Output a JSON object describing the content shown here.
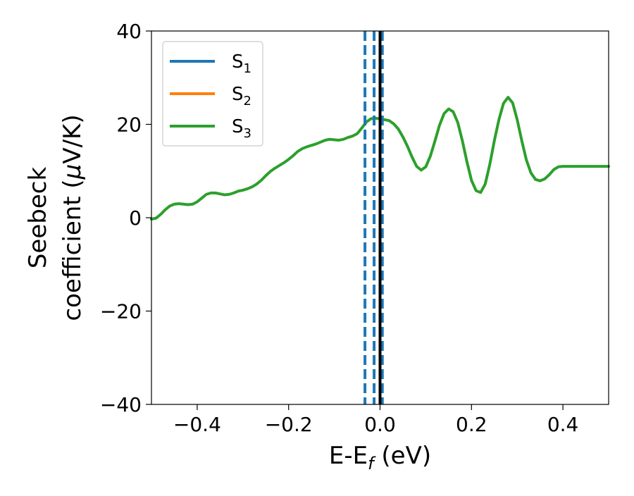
{
  "chart_data": {
    "type": "line",
    "title": "",
    "xlabel": {
      "main": "E-E",
      "sub": "f",
      "suffix": " (eV)"
    },
    "ylabel": {
      "line1": "Seebeck",
      "line2_prefix": "coefficient  (",
      "line2_mu": "μ",
      "line2_suffix": "V/K)"
    },
    "xlim": [
      -0.5,
      0.5
    ],
    "ylim": [
      -40,
      40
    ],
    "x_ticks": [
      -0.4,
      -0.2,
      0.0,
      0.2,
      0.4
    ],
    "x_tick_labels": [
      "−0.4",
      "−0.2",
      "0.0",
      "0.2",
      "0.4"
    ],
    "y_ticks": [
      -40,
      -20,
      0,
      20,
      40
    ],
    "y_tick_labels": [
      "−40",
      "−20",
      "0",
      "20",
      "40"
    ],
    "grid": false,
    "legend": {
      "placement": "top-left",
      "entries": [
        {
          "base": "S",
          "sub": "1",
          "color": "#1f77b4"
        },
        {
          "base": "S",
          "sub": "2",
          "color": "#ff7f0e"
        },
        {
          "base": "S",
          "sub": "3",
          "color": "#2ca02c"
        }
      ]
    },
    "series": [
      {
        "color": "#2ca02c",
        "x": [
          -0.5,
          -0.49,
          -0.48,
          -0.47,
          -0.46,
          -0.45,
          -0.44,
          -0.43,
          -0.42,
          -0.41,
          -0.4,
          -0.39,
          -0.38,
          -0.37,
          -0.36,
          -0.35,
          -0.34,
          -0.33,
          -0.32,
          -0.31,
          -0.3,
          -0.29,
          -0.28,
          -0.27,
          -0.26,
          -0.25,
          -0.24,
          -0.23,
          -0.22,
          -0.21,
          -0.2,
          -0.19,
          -0.18,
          -0.17,
          -0.16,
          -0.15,
          -0.14,
          -0.13,
          -0.12,
          -0.11,
          -0.1,
          -0.09,
          -0.08,
          -0.07,
          -0.06,
          -0.05,
          -0.04,
          -0.03,
          -0.02,
          -0.01,
          0.0,
          0.01,
          0.02,
          0.03,
          0.04,
          0.05,
          0.06,
          0.07,
          0.08,
          0.09,
          0.1,
          0.11,
          0.12,
          0.13,
          0.14,
          0.15,
          0.16,
          0.17,
          0.18,
          0.19,
          0.2,
          0.21,
          0.22,
          0.23,
          0.24,
          0.25,
          0.26,
          0.27,
          0.28,
          0.29,
          0.3,
          0.31,
          0.32,
          0.33,
          0.34,
          0.35,
          0.36,
          0.37,
          0.38,
          0.39,
          0.4,
          0.41,
          0.42,
          0.43,
          0.44,
          0.45,
          0.46,
          0.47,
          0.48,
          0.49,
          0.5
        ],
        "y": [
          -0.3,
          -0.1,
          0.7,
          1.7,
          2.5,
          2.9,
          3.0,
          2.9,
          2.8,
          2.9,
          3.4,
          4.2,
          5.0,
          5.3,
          5.3,
          5.1,
          4.9,
          5.0,
          5.3,
          5.7,
          5.9,
          6.2,
          6.6,
          7.2,
          8.0,
          9.0,
          9.9,
          10.6,
          11.2,
          11.8,
          12.5,
          13.3,
          14.2,
          14.8,
          15.2,
          15.5,
          15.8,
          16.2,
          16.6,
          16.8,
          16.7,
          16.6,
          16.8,
          17.2,
          17.5,
          18.0,
          19.2,
          20.5,
          21.2,
          21.3,
          21.2,
          21.0,
          20.8,
          20.1,
          19.0,
          17.3,
          15.3,
          13.0,
          11.0,
          10.2,
          10.9,
          13.2,
          16.4,
          19.8,
          22.3,
          23.3,
          22.7,
          20.4,
          16.5,
          12.0,
          8.0,
          5.8,
          5.4,
          7.2,
          11.4,
          16.5,
          21.0,
          24.5,
          25.8,
          24.6,
          21.0,
          16.5,
          12.4,
          9.6,
          8.2,
          7.9,
          8.3,
          9.2,
          10.3,
          10.9,
          11.0,
          11.0,
          11.0,
          11.0,
          11.0,
          11.0,
          11.0,
          11.0,
          11.0,
          11.0,
          11.0
        ]
      }
    ],
    "vertical_lines": [
      {
        "x": -0.033,
        "color": "#1f77b4",
        "style": "dashed"
      },
      {
        "x": -0.013,
        "color": "#1f77b4",
        "style": "dashed"
      },
      {
        "x": 0.005,
        "color": "#1f77b4",
        "style": "dashed"
      },
      {
        "x": 0.0,
        "color": "#000000",
        "style": "solid"
      }
    ]
  }
}
